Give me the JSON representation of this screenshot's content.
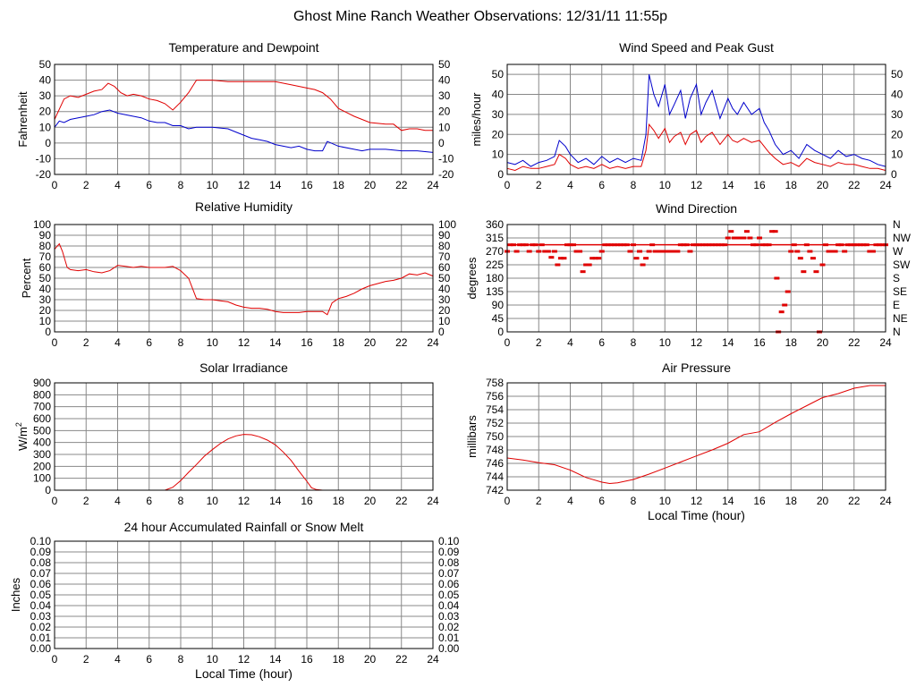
{
  "page": {
    "title": "Ghost Mine Ranch Weather Observations: 12/31/11 11:55p"
  },
  "colors": {
    "grid": "#888888",
    "frame": "#000000",
    "red": "#e00000",
    "blue": "#0000cc"
  },
  "chart_data": [
    {
      "id": "temperature",
      "type": "line",
      "title": "Temperature and Dewpoint",
      "ylabel": "Fahrenheit",
      "xlabel": "",
      "xlim": [
        0,
        24
      ],
      "ylim": [
        -20,
        50
      ],
      "xticks": [
        0,
        2,
        4,
        6,
        8,
        10,
        12,
        14,
        16,
        18,
        20,
        22,
        24
      ],
      "yticks": [
        -20,
        -10,
        0,
        10,
        20,
        30,
        40,
        50
      ],
      "right_axis_labels": true,
      "grid": true,
      "series": [
        {
          "color": "red",
          "x": [
            0,
            0.6,
            1,
            1.5,
            2,
            2.5,
            3,
            3.4,
            3.8,
            4.2,
            4.6,
            5,
            5.5,
            6,
            6.5,
            7,
            7.5,
            8,
            8.5,
            9,
            10,
            11,
            12,
            13,
            14,
            15,
            16,
            16.5,
            17,
            17.5,
            18,
            19,
            20,
            21,
            21.5,
            22,
            22.5,
            23,
            23.5,
            24
          ],
          "y": [
            15,
            28,
            30,
            29,
            31,
            33,
            34,
            38,
            36,
            32,
            30,
            31,
            30,
            28,
            27,
            25,
            21,
            26,
            32,
            40,
            40,
            39,
            39,
            39,
            39,
            37,
            35,
            34,
            32,
            28,
            22,
            17,
            13,
            12,
            12,
            8,
            9,
            9,
            8,
            8
          ]
        },
        {
          "color": "blue",
          "x": [
            0,
            0.3,
            0.6,
            1,
            1.5,
            2,
            2.5,
            3,
            3.5,
            4,
            4.5,
            5,
            5.5,
            6,
            6.5,
            7,
            7.5,
            8,
            8.5,
            9,
            10,
            11,
            11.5,
            12,
            12.5,
            13,
            13.5,
            14,
            14.5,
            15,
            15.5,
            16,
            16.5,
            17,
            17.3,
            18,
            19,
            19.5,
            20,
            21,
            22,
            23,
            24
          ],
          "y": [
            10,
            14,
            13,
            15,
            16,
            17,
            18,
            20,
            21,
            19,
            18,
            17,
            16,
            14,
            13,
            13,
            11,
            11,
            9,
            10,
            10,
            9,
            7,
            5,
            3,
            2,
            1,
            -1,
            -2,
            -3,
            -2,
            -4,
            -5,
            -5,
            1,
            -2,
            -4,
            -5,
            -4,
            -4,
            -5,
            -5,
            -6
          ]
        }
      ]
    },
    {
      "id": "wind-speed",
      "type": "line",
      "title": "Wind Speed and Peak Gust",
      "ylabel": "miles/hour",
      "xlabel": "",
      "xlim": [
        0,
        24
      ],
      "ylim": [
        0,
        55
      ],
      "xticks": [
        0,
        2,
        4,
        6,
        8,
        10,
        12,
        14,
        16,
        18,
        20,
        22,
        24
      ],
      "yticks": [
        0,
        10,
        20,
        30,
        40,
        50
      ],
      "right_axis_labels": true,
      "grid": true,
      "series": [
        {
          "color": "blue",
          "x": [
            0,
            0.5,
            1,
            1.5,
            2,
            2.5,
            3,
            3.3,
            3.7,
            4,
            4.5,
            5,
            5.5,
            6,
            6.5,
            7,
            7.5,
            8,
            8.5,
            8.8,
            9,
            9.3,
            9.6,
            10,
            10.3,
            10.6,
            11,
            11.3,
            11.6,
            12,
            12.3,
            12.6,
            13,
            13.5,
            14,
            14.3,
            14.6,
            15,
            15.5,
            16,
            16.3,
            16.6,
            17,
            17.5,
            18,
            18.5,
            19,
            19.5,
            20,
            20.5,
            21,
            21.5,
            22,
            22.5,
            23,
            23.5,
            24
          ],
          "y": [
            6,
            5,
            7,
            4,
            6,
            7,
            9,
            17,
            14,
            10,
            6,
            8,
            5,
            9,
            6,
            8,
            6,
            8,
            7,
            20,
            50,
            40,
            34,
            45,
            30,
            35,
            42,
            28,
            38,
            45,
            30,
            36,
            42,
            28,
            38,
            33,
            30,
            36,
            30,
            33,
            26,
            22,
            15,
            10,
            12,
            8,
            15,
            12,
            10,
            8,
            12,
            9,
            10,
            8,
            7,
            5,
            4
          ]
        },
        {
          "color": "red",
          "x": [
            0,
            0.5,
            1,
            1.5,
            2,
            2.5,
            3,
            3.3,
            3.7,
            4,
            4.5,
            5,
            5.5,
            6,
            6.5,
            7,
            7.5,
            8,
            8.5,
            8.8,
            9,
            9.3,
            9.6,
            10,
            10.3,
            10.6,
            11,
            11.3,
            11.6,
            12,
            12.3,
            12.6,
            13,
            13.5,
            14,
            14.3,
            14.6,
            15,
            15.5,
            16,
            16.3,
            16.6,
            17,
            17.5,
            18,
            18.5,
            19,
            19.5,
            20,
            20.5,
            21,
            21.5,
            22,
            22.5,
            23,
            23.5,
            24
          ],
          "y": [
            3,
            2,
            4,
            3,
            3,
            4,
            5,
            10,
            8,
            5,
            3,
            4,
            3,
            5,
            3,
            4,
            3,
            4,
            4,
            12,
            25,
            22,
            18,
            23,
            16,
            19,
            21,
            15,
            20,
            22,
            16,
            19,
            21,
            15,
            20,
            17,
            16,
            18,
            16,
            17,
            14,
            11,
            8,
            5,
            6,
            4,
            8,
            6,
            5,
            4,
            6,
            5,
            5,
            4,
            3,
            3,
            2
          ]
        }
      ]
    },
    {
      "id": "humidity",
      "type": "line",
      "title": "Relative Humidity",
      "ylabel": "Percent",
      "xlabel": "",
      "xlim": [
        0,
        24
      ],
      "ylim": [
        0,
        100
      ],
      "xticks": [
        0,
        2,
        4,
        6,
        8,
        10,
        12,
        14,
        16,
        18,
        20,
        22,
        24
      ],
      "yticks": [
        0,
        10,
        20,
        30,
        40,
        50,
        60,
        70,
        80,
        90,
        100
      ],
      "right_axis_labels": true,
      "grid": true,
      "series": [
        {
          "color": "red",
          "x": [
            0,
            0.3,
            0.5,
            0.8,
            1,
            1.5,
            2,
            2.5,
            3,
            3.5,
            4,
            4.5,
            5,
            5.5,
            6,
            6.5,
            7,
            7.5,
            8,
            8.5,
            9,
            9.5,
            10,
            10.5,
            11,
            11.5,
            12,
            12.5,
            13,
            13.5,
            14,
            14.5,
            15,
            15.5,
            16,
            16.5,
            17,
            17.3,
            17.6,
            18,
            18.5,
            19,
            19.5,
            20,
            20.5,
            21,
            21.5,
            22,
            22.5,
            23,
            23.5,
            24
          ],
          "y": [
            77,
            82,
            75,
            60,
            58,
            57,
            58,
            56,
            55,
            57,
            62,
            61,
            60,
            61,
            60,
            60,
            60,
            61,
            57,
            50,
            31,
            30,
            30,
            29,
            28,
            25,
            23,
            22,
            22,
            21,
            19,
            18,
            18,
            18,
            19,
            19,
            19,
            16,
            27,
            31,
            33,
            36,
            40,
            43,
            45,
            47,
            48,
            50,
            54,
            53,
            55,
            52
          ]
        }
      ]
    },
    {
      "id": "wind-direction",
      "type": "scatter",
      "title": "Wind Direction",
      "ylabel": "degrees",
      "xlabel": "",
      "xlim": [
        0,
        24
      ],
      "ylim": [
        0,
        360
      ],
      "xticks": [
        0,
        2,
        4,
        6,
        8,
        10,
        12,
        14,
        16,
        18,
        20,
        22,
        24
      ],
      "yticks": [
        0,
        45,
        90,
        135,
        180,
        225,
        270,
        315,
        360
      ],
      "right_tick_labels": [
        "N",
        "NE",
        "E",
        "SE",
        "S",
        "SW",
        "W",
        "NW",
        "N"
      ],
      "grid": true,
      "reference_line": 292,
      "series": [
        {
          "color": "red",
          "x": [
            0,
            0.2,
            0.4,
            0.6,
            0.8,
            1,
            1.2,
            1.4,
            1.6,
            1.8,
            2,
            2.2,
            2.4,
            2.6,
            2.8,
            3,
            3.2,
            3.4,
            3.6,
            3.8,
            4,
            4.2,
            4.4,
            4.6,
            4.8,
            5,
            5.2,
            5.4,
            5.6,
            5.8,
            6,
            6.2,
            6.4,
            6.6,
            6.8,
            7,
            7.2,
            7.4,
            7.6,
            7.8,
            8,
            8.2,
            8.4,
            8.6,
            8.8,
            9,
            9.2,
            9.4,
            9.6,
            9.8,
            10,
            10.2,
            10.4,
            10.6,
            10.8,
            11,
            11.2,
            11.4,
            11.6,
            11.8,
            12,
            12.2,
            12.4,
            12.6,
            12.8,
            13,
            13.2,
            13.4,
            13.6,
            13.8,
            14,
            14.2,
            14.4,
            14.6,
            14.8,
            15,
            15.2,
            15.4,
            15.6,
            15.8,
            16,
            16.2,
            16.4,
            16.6,
            16.8,
            17,
            17.1,
            17.2,
            17.4,
            17.6,
            17.8,
            18,
            18.2,
            18.4,
            18.6,
            18.8,
            19,
            19.2,
            19.4,
            19.6,
            19.8,
            20,
            20.2,
            20.4,
            20.6,
            20.8,
            21,
            21.2,
            21.4,
            21.6,
            21.8,
            22,
            22.2,
            22.4,
            22.6,
            22.8,
            23,
            23.2,
            23.4,
            23.6,
            23.8,
            24
          ],
          "y": [
            270,
            292,
            292,
            270,
            292,
            292,
            292,
            270,
            292,
            292,
            270,
            292,
            270,
            270,
            250,
            270,
            225,
            247,
            247,
            292,
            292,
            292,
            270,
            270,
            202,
            225,
            225,
            247,
            247,
            247,
            270,
            292,
            292,
            292,
            292,
            292,
            292,
            292,
            292,
            270,
            292,
            247,
            270,
            225,
            247,
            270,
            292,
            270,
            270,
            270,
            270,
            270,
            270,
            270,
            270,
            292,
            292,
            292,
            270,
            292,
            292,
            292,
            292,
            292,
            292,
            292,
            292,
            292,
            292,
            292,
            315,
            337,
            315,
            315,
            315,
            315,
            337,
            315,
            292,
            292,
            315,
            292,
            292,
            292,
            337,
            337,
            180,
            0,
            67,
            90,
            135,
            270,
            292,
            270,
            247,
            202,
            292,
            270,
            247,
            202,
            0,
            225,
            292,
            270,
            270,
            270,
            292,
            292,
            270,
            292,
            292,
            292,
            292,
            292,
            292,
            292,
            270,
            270,
            292,
            292,
            292,
            292
          ]
        }
      ]
    },
    {
      "id": "solar",
      "type": "line",
      "title": "Solar Irradiance",
      "ylabel": "W/m",
      "ylabel_superscript": "2",
      "xlabel": "",
      "xlim": [
        0,
        24
      ],
      "ylim": [
        0,
        900
      ],
      "xticks": [
        0,
        2,
        4,
        6,
        8,
        10,
        12,
        14,
        16,
        18,
        20,
        22,
        24
      ],
      "yticks": [
        0,
        100,
        200,
        300,
        400,
        500,
        600,
        700,
        800,
        900
      ],
      "right_axis_labels": false,
      "grid": true,
      "series": [
        {
          "color": "red",
          "x": [
            0,
            7,
            7.5,
            8,
            8.5,
            9,
            9.5,
            10,
            10.5,
            11,
            11.5,
            12,
            12.5,
            13,
            13.5,
            14,
            14.5,
            15,
            15.5,
            16,
            16.3,
            16.6,
            17,
            24
          ],
          "y": [
            0,
            0,
            25,
            80,
            150,
            215,
            285,
            340,
            390,
            430,
            455,
            468,
            465,
            448,
            420,
            380,
            320,
            250,
            160,
            75,
            20,
            5,
            0,
            0
          ]
        }
      ]
    },
    {
      "id": "pressure",
      "type": "line",
      "title": "Air Pressure",
      "ylabel": "millibars",
      "xlabel": "Local Time (hour)",
      "xlim": [
        0,
        24
      ],
      "ylim": [
        742,
        758
      ],
      "xticks": [
        0,
        2,
        4,
        6,
        8,
        10,
        12,
        14,
        16,
        18,
        20,
        22,
        24
      ],
      "yticks": [
        742,
        744,
        746,
        748,
        750,
        752,
        754,
        756,
        758
      ],
      "right_axis_labels": false,
      "grid": true,
      "series": [
        {
          "color": "red",
          "x": [
            0,
            1,
            2,
            3,
            4,
            5,
            6,
            6.5,
            7,
            8,
            9,
            10,
            11,
            12,
            13,
            14,
            15,
            16,
            17,
            18,
            19,
            20,
            21,
            22,
            23,
            24
          ],
          "y": [
            746.8,
            746.5,
            746.1,
            745.8,
            745,
            743.9,
            743.2,
            743,
            743.1,
            743.6,
            744.4,
            745.3,
            746.2,
            747.1,
            748,
            749,
            750.3,
            750.7,
            752.1,
            753.4,
            754.6,
            755.8,
            756.4,
            757.2,
            757.6,
            757.6
          ]
        }
      ]
    },
    {
      "id": "rainfall",
      "type": "line",
      "title": "24 hour Accumulated Rainfall or Snow Melt",
      "ylabel": "Inches",
      "xlabel": "Local Time (hour)",
      "xlim": [
        0,
        24
      ],
      "ylim": [
        0,
        0.1
      ],
      "xticks": [
        0,
        2,
        4,
        6,
        8,
        10,
        12,
        14,
        16,
        18,
        20,
        22,
        24
      ],
      "yticks": [
        "0.00",
        "0.01",
        "0.02",
        "0.03",
        "0.04",
        "0.05",
        "0.06",
        "0.07",
        "0.08",
        "0.09",
        "0.10"
      ],
      "right_axis_labels": true,
      "grid": true,
      "series": [
        {
          "color": "red",
          "x": [
            0,
            24
          ],
          "y": [
            0,
            0
          ]
        }
      ]
    }
  ]
}
